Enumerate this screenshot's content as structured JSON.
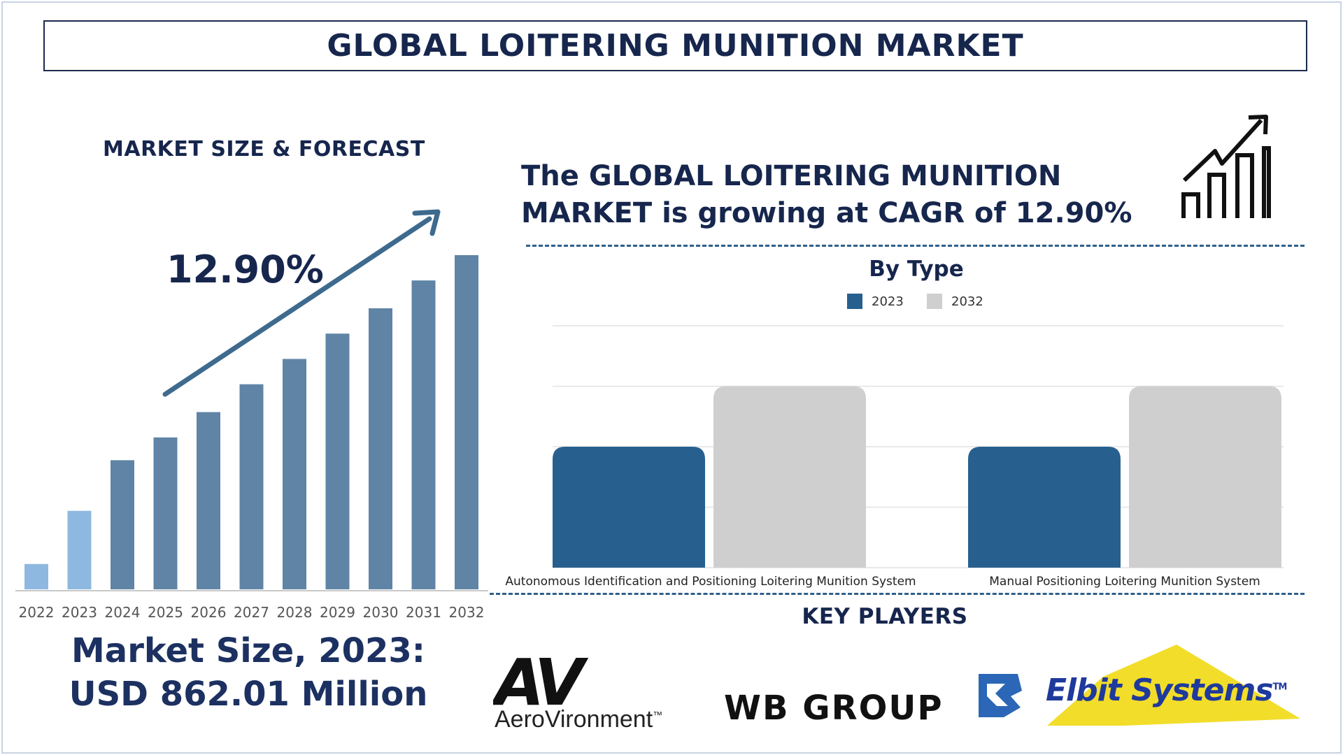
{
  "title": "GLOBAL LOITERING MUNITION MARKET",
  "left_panel": {
    "title": "MARKET SIZE & FORECAST",
    "cagr": "12.90%",
    "market_size_line1": "Market Size, 2023:",
    "market_size_line2": "USD 862.01 Million"
  },
  "headline_line1": "The GLOBAL LOITERING MUNITION",
  "headline_line2": "MARKET is growing at CAGR of 12.90%",
  "by_type_title": "By Type",
  "key_players": {
    "title": "KEY PLAYERS",
    "logos": [
      {
        "name": "AeroVironment",
        "mark": "AV",
        "sub": "AeroVironment",
        "tm": "™"
      },
      {
        "name": "WB GROUP",
        "text": "WB GROUP"
      },
      {
        "name": "Elbit Systems",
        "text": "Elbit Systems",
        "tm": "TM"
      }
    ]
  },
  "colors": {
    "navy": "#16264d",
    "bar_forecast": "#5f84a6",
    "bar_2023": "#8fb8e0",
    "series_2023": "#27608f",
    "series_2032": "#cfcfcf",
    "arrow": "#3e6a8e",
    "dashed": "#2f5f8a",
    "elbit_yellow": "#f2dd2a",
    "elbit_blue": "#1f3a9c"
  },
  "icons": [
    "trend-arrow-icon",
    "bar-chart-icon"
  ],
  "chart_data": [
    {
      "type": "bar",
      "title": "MARKET SIZE & FORECAST",
      "categories": [
        "2022",
        "2023",
        "2024",
        "2025",
        "2026",
        "2027",
        "2028",
        "2029",
        "2030",
        "2031",
        "2032"
      ],
      "values": [
        1.0,
        3.1,
        5.1,
        6.0,
        7.0,
        8.1,
        9.1,
        10.1,
        11.1,
        12.2,
        13.2
      ],
      "highlight_index": 1,
      "annotation": "12.90%",
      "ylim": [
        0,
        14
      ],
      "grid": false
    },
    {
      "type": "bar",
      "title": "By Type",
      "categories": [
        "Autonomous Identification and Positioning Loitering Munition System",
        "Manual Positioning Loitering Munition System"
      ],
      "series": [
        {
          "name": "2023",
          "values": [
            2,
            2
          ]
        },
        {
          "name": "2032",
          "values": [
            3,
            3
          ]
        }
      ],
      "ylim": [
        0,
        4
      ],
      "grid": true,
      "legend": "top-center"
    }
  ]
}
